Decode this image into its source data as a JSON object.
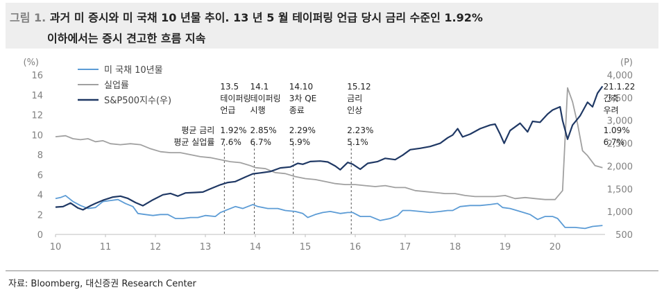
{
  "header": {
    "figure_label": "그림 1.",
    "title_line1": "과거 미 증시와 미 국채 10 년물 추이. 13 년 5 월 테이퍼링 언급 당시 금리 수준인 1.92%",
    "title_line2": "이하에서는 증시 견고한 흐름 지속"
  },
  "footer": {
    "source": "자료: Bloomberg, 대신증권 Research Center"
  },
  "colors": {
    "treasury": "#5b9bd5",
    "unemployment": "#a0a0a0",
    "sp500": "#1f3864",
    "title_bg": "#eeeeee"
  },
  "chart_data": {
    "type": "line",
    "xlabel": "",
    "ylabel_left": "(%)",
    "ylabel_right": "(P)",
    "xlim": [
      2010,
      2021
    ],
    "ylim_left": [
      0,
      16
    ],
    "ylim_right": [
      500,
      4000
    ],
    "x_ticks": [
      "10",
      "11",
      "12",
      "13",
      "14",
      "15",
      "16",
      "17",
      "18",
      "19",
      "20"
    ],
    "y_left_ticks": [
      "0",
      "2",
      "4",
      "6",
      "8",
      "10",
      "12",
      "14",
      "16"
    ],
    "y_right_ticks": [
      "500",
      "1,000",
      "1,500",
      "2,000",
      "2,500",
      "3,000",
      "3,500",
      "4,000"
    ],
    "grid": false,
    "legend_position": "top-left",
    "series": [
      {
        "name": "미 국채 10년물",
        "axis": "left",
        "points": [
          [
            2010.0,
            3.6
          ],
          [
            2010.1,
            3.7
          ],
          [
            2010.2,
            3.9
          ],
          [
            2010.35,
            3.3
          ],
          [
            2010.5,
            2.9
          ],
          [
            2010.65,
            2.6
          ],
          [
            2010.8,
            2.7
          ],
          [
            2010.95,
            3.3
          ],
          [
            2011.1,
            3.4
          ],
          [
            2011.25,
            3.5
          ],
          [
            2011.4,
            3.1
          ],
          [
            2011.55,
            2.8
          ],
          [
            2011.65,
            2.1
          ],
          [
            2011.8,
            2.0
          ],
          [
            2011.95,
            1.9
          ],
          [
            2012.1,
            2.0
          ],
          [
            2012.25,
            2.0
          ],
          [
            2012.4,
            1.6
          ],
          [
            2012.55,
            1.6
          ],
          [
            2012.7,
            1.7
          ],
          [
            2012.85,
            1.7
          ],
          [
            2013.0,
            1.9
          ],
          [
            2013.2,
            1.8
          ],
          [
            2013.3,
            2.2
          ],
          [
            2013.45,
            2.5
          ],
          [
            2013.6,
            2.8
          ],
          [
            2013.75,
            2.6
          ],
          [
            2013.95,
            3.0
          ],
          [
            2014.05,
            2.8
          ],
          [
            2014.25,
            2.6
          ],
          [
            2014.45,
            2.6
          ],
          [
            2014.6,
            2.4
          ],
          [
            2014.8,
            2.3
          ],
          [
            2014.95,
            2.1
          ],
          [
            2015.05,
            1.7
          ],
          [
            2015.2,
            2.0
          ],
          [
            2015.35,
            2.2
          ],
          [
            2015.5,
            2.3
          ],
          [
            2015.7,
            2.1
          ],
          [
            2015.85,
            2.2
          ],
          [
            2015.95,
            2.2
          ],
          [
            2016.1,
            1.8
          ],
          [
            2016.3,
            1.8
          ],
          [
            2016.5,
            1.4
          ],
          [
            2016.7,
            1.6
          ],
          [
            2016.85,
            1.9
          ],
          [
            2016.95,
            2.4
          ],
          [
            2017.1,
            2.4
          ],
          [
            2017.3,
            2.3
          ],
          [
            2017.5,
            2.2
          ],
          [
            2017.7,
            2.3
          ],
          [
            2017.85,
            2.4
          ],
          [
            2017.95,
            2.4
          ],
          [
            2018.1,
            2.8
          ],
          [
            2018.3,
            2.9
          ],
          [
            2018.5,
            2.9
          ],
          [
            2018.7,
            3.0
          ],
          [
            2018.85,
            3.1
          ],
          [
            2018.95,
            2.7
          ],
          [
            2019.1,
            2.6
          ],
          [
            2019.3,
            2.3
          ],
          [
            2019.5,
            2.0
          ],
          [
            2019.65,
            1.5
          ],
          [
            2019.8,
            1.8
          ],
          [
            2019.95,
            1.8
          ],
          [
            2020.05,
            1.6
          ],
          [
            2020.2,
            0.7
          ],
          [
            2020.4,
            0.7
          ],
          [
            2020.6,
            0.6
          ],
          [
            2020.75,
            0.8
          ],
          [
            2020.95,
            0.9
          ]
        ]
      },
      {
        "name": "실업률",
        "axis": "left",
        "points": [
          [
            2010.0,
            9.8
          ],
          [
            2010.2,
            9.9
          ],
          [
            2010.35,
            9.6
          ],
          [
            2010.5,
            9.5
          ],
          [
            2010.65,
            9.6
          ],
          [
            2010.8,
            9.3
          ],
          [
            2010.95,
            9.4
          ],
          [
            2011.1,
            9.1
          ],
          [
            2011.3,
            9.0
          ],
          [
            2011.5,
            9.1
          ],
          [
            2011.7,
            9.0
          ],
          [
            2011.9,
            8.6
          ],
          [
            2012.1,
            8.3
          ],
          [
            2012.3,
            8.2
          ],
          [
            2012.5,
            8.2
          ],
          [
            2012.7,
            8.0
          ],
          [
            2012.9,
            7.8
          ],
          [
            2013.1,
            7.7
          ],
          [
            2013.3,
            7.5
          ],
          [
            2013.5,
            7.3
          ],
          [
            2013.7,
            7.2
          ],
          [
            2013.9,
            6.9
          ],
          [
            2014.0,
            6.7
          ],
          [
            2014.2,
            6.6
          ],
          [
            2014.4,
            6.2
          ],
          [
            2014.6,
            6.1
          ],
          [
            2014.8,
            5.8
          ],
          [
            2015.0,
            5.6
          ],
          [
            2015.2,
            5.5
          ],
          [
            2015.4,
            5.3
          ],
          [
            2015.6,
            5.1
          ],
          [
            2015.8,
            5.0
          ],
          [
            2016.0,
            5.0
          ],
          [
            2016.2,
            4.9
          ],
          [
            2016.4,
            4.8
          ],
          [
            2016.6,
            4.9
          ],
          [
            2016.8,
            4.7
          ],
          [
            2017.0,
            4.7
          ],
          [
            2017.2,
            4.4
          ],
          [
            2017.4,
            4.3
          ],
          [
            2017.6,
            4.2
          ],
          [
            2017.8,
            4.1
          ],
          [
            2018.0,
            4.1
          ],
          [
            2018.2,
            3.9
          ],
          [
            2018.4,
            3.8
          ],
          [
            2018.6,
            3.8
          ],
          [
            2018.8,
            3.8
          ],
          [
            2019.0,
            3.9
          ],
          [
            2019.2,
            3.6
          ],
          [
            2019.4,
            3.7
          ],
          [
            2019.6,
            3.6
          ],
          [
            2019.8,
            3.5
          ],
          [
            2020.0,
            3.5
          ],
          [
            2020.15,
            4.4
          ],
          [
            2020.25,
            14.7
          ],
          [
            2020.35,
            13.3
          ],
          [
            2020.45,
            11.1
          ],
          [
            2020.55,
            8.4
          ],
          [
            2020.65,
            7.9
          ],
          [
            2020.8,
            6.9
          ],
          [
            2020.95,
            6.7
          ]
        ]
      },
      {
        "name": "S&P500지수(우)",
        "axis": "right",
        "points": [
          [
            2010.0,
            1100
          ],
          [
            2010.15,
            1110
          ],
          [
            2010.3,
            1190
          ],
          [
            2010.45,
            1080
          ],
          [
            2010.55,
            1040
          ],
          [
            2010.7,
            1130
          ],
          [
            2010.8,
            1180
          ],
          [
            2010.95,
            1250
          ],
          [
            2011.15,
            1320
          ],
          [
            2011.3,
            1340
          ],
          [
            2011.45,
            1290
          ],
          [
            2011.6,
            1200
          ],
          [
            2011.75,
            1130
          ],
          [
            2011.95,
            1260
          ],
          [
            2012.15,
            1370
          ],
          [
            2012.3,
            1400
          ],
          [
            2012.45,
            1340
          ],
          [
            2012.6,
            1410
          ],
          [
            2012.8,
            1420
          ],
          [
            2012.95,
            1430
          ],
          [
            2013.1,
            1500
          ],
          [
            2013.3,
            1590
          ],
          [
            2013.45,
            1640
          ],
          [
            2013.6,
            1660
          ],
          [
            2013.8,
            1760
          ],
          [
            2013.95,
            1830
          ],
          [
            2014.1,
            1850
          ],
          [
            2014.3,
            1880
          ],
          [
            2014.5,
            1960
          ],
          [
            2014.7,
            1980
          ],
          [
            2014.85,
            2060
          ],
          [
            2014.95,
            2040
          ],
          [
            2015.1,
            2100
          ],
          [
            2015.3,
            2110
          ],
          [
            2015.45,
            2090
          ],
          [
            2015.6,
            2000
          ],
          [
            2015.7,
            1920
          ],
          [
            2015.85,
            2080
          ],
          [
            2015.95,
            2040
          ],
          [
            2016.1,
            1930
          ],
          [
            2016.25,
            2060
          ],
          [
            2016.45,
            2100
          ],
          [
            2016.6,
            2170
          ],
          [
            2016.8,
            2140
          ],
          [
            2016.95,
            2240
          ],
          [
            2017.1,
            2360
          ],
          [
            2017.3,
            2390
          ],
          [
            2017.5,
            2430
          ],
          [
            2017.7,
            2500
          ],
          [
            2017.85,
            2620
          ],
          [
            2017.95,
            2680
          ],
          [
            2018.05,
            2820
          ],
          [
            2018.15,
            2640
          ],
          [
            2018.3,
            2700
          ],
          [
            2018.5,
            2820
          ],
          [
            2018.7,
            2900
          ],
          [
            2018.8,
            2920
          ],
          [
            2018.9,
            2700
          ],
          [
            2018.98,
            2500
          ],
          [
            2019.1,
            2780
          ],
          [
            2019.3,
            2940
          ],
          [
            2019.45,
            2750
          ],
          [
            2019.55,
            2980
          ],
          [
            2019.7,
            2960
          ],
          [
            2019.85,
            3140
          ],
          [
            2019.95,
            3230
          ],
          [
            2020.1,
            3300
          ],
          [
            2020.15,
            3000
          ],
          [
            2020.25,
            2590
          ],
          [
            2020.35,
            2900
          ],
          [
            2020.5,
            3100
          ],
          [
            2020.65,
            3400
          ],
          [
            2020.75,
            3300
          ],
          [
            2020.85,
            3600
          ],
          [
            2020.95,
            3750
          ]
        ]
      }
    ],
    "vlines": [
      {
        "x": 2013.38,
        "date": "13.5",
        "label1": "테이퍼링",
        "label2": "언급",
        "rate": "1.92%",
        "unemp": "7.6%"
      },
      {
        "x": 2013.98,
        "date": "14.1",
        "label1": "테이퍼링",
        "label2": "시행",
        "rate": "2.85%",
        "unemp": "6.7%"
      },
      {
        "x": 2014.76,
        "date": "14.10",
        "label1": "3차 QE",
        "label2": "종료",
        "rate": "2.29%",
        "unemp": "5.9%"
      },
      {
        "x": 2015.92,
        "date": "15.12",
        "label1": "금리",
        "label2": "인상",
        "rate": "2.23%",
        "unemp": "5.1%"
      },
      {
        "x": 2021.05,
        "date": "21.1.22",
        "label1": "긴축",
        "label2": "우려",
        "rate": "1.09%",
        "unemp": "6.7%"
      }
    ],
    "annotation_row_labels": {
      "rate": "평균 금리",
      "unemp": "평균 실업률"
    }
  }
}
